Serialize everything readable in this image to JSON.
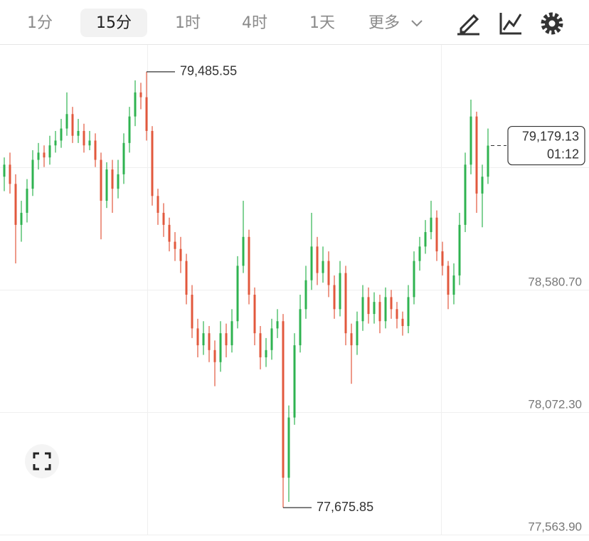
{
  "toolbar": {
    "tabs": [
      "1分",
      "15分",
      "1时",
      "4时",
      "1天"
    ],
    "selected": 1,
    "more": "更多"
  },
  "chart_data": {
    "type": "candlestick",
    "up_color": "#2fb350",
    "down_color": "#e2583d",
    "ylim": [
      77563.9,
      79597.5
    ],
    "yticks": [
      {
        "value": 77563.9,
        "label": "77,563.90"
      },
      {
        "value": 78072.3,
        "label": "78,072.30"
      },
      {
        "value": 78580.7,
        "label": "78,580.70"
      }
    ],
    "grid": true,
    "high": {
      "value": 79485.55,
      "label": "79,485.55"
    },
    "low": {
      "value": 77675.85,
      "label": "77,675.85"
    },
    "last": {
      "value": 79179.13,
      "label": "79,179.13"
    },
    "countdown": "01:12",
    "candles": [
      [
        79050,
        79130,
        78990,
        79100
      ],
      [
        79100,
        79150,
        78980,
        79020
      ],
      [
        79020,
        79060,
        78690,
        78850
      ],
      [
        78850,
        78950,
        78780,
        78900
      ],
      [
        78900,
        79040,
        78860,
        79000
      ],
      [
        79000,
        79160,
        78970,
        79120
      ],
      [
        79120,
        79190,
        79080,
        79150
      ],
      [
        79150,
        79180,
        79090,
        79130
      ],
      [
        79130,
        79220,
        79100,
        79180
      ],
      [
        79180,
        79240,
        79150,
        79200
      ],
      [
        79200,
        79290,
        79170,
        79250
      ],
      [
        79250,
        79400,
        79220,
        79310
      ],
      [
        79310,
        79340,
        79190,
        79220
      ],
      [
        79220,
        79290,
        79190,
        79240
      ],
      [
        79240,
        79270,
        79150,
        79180
      ],
      [
        79180,
        79240,
        79160,
        79200
      ],
      [
        79200,
        79230,
        79090,
        79120
      ],
      [
        79120,
        79150,
        78790,
        78950
      ],
      [
        78950,
        79110,
        78920,
        79080
      ],
      [
        79080,
        79120,
        78900,
        79000
      ],
      [
        79000,
        79120,
        78960,
        79060
      ],
      [
        79060,
        79230,
        79020,
        79190
      ],
      [
        79190,
        79340,
        79150,
        79300
      ],
      [
        79300,
        79450,
        79260,
        79400
      ],
      [
        79400,
        79440,
        79330,
        79380
      ],
      [
        79380,
        79485.55,
        79200,
        79240
      ],
      [
        79240,
        79260,
        78930,
        78970
      ],
      [
        78970,
        79000,
        78850,
        78900
      ],
      [
        78900,
        78940,
        78800,
        78850
      ],
      [
        78850,
        78880,
        78740,
        78780
      ],
      [
        78780,
        78820,
        78700,
        78750
      ],
      [
        78750,
        78800,
        78650,
        78700
      ],
      [
        78700,
        78730,
        78520,
        78560
      ],
      [
        78560,
        78600,
        78380,
        78420
      ],
      [
        78420,
        78460,
        78300,
        78350
      ],
      [
        78350,
        78450,
        78310,
        78400
      ],
      [
        78400,
        78430,
        78280,
        78330
      ],
      [
        78330,
        78370,
        78180,
        78280
      ],
      [
        78280,
        78450,
        78240,
        78400
      ],
      [
        78400,
        78440,
        78300,
        78350
      ],
      [
        78350,
        78500,
        78320,
        78450
      ],
      [
        78450,
        78720,
        78420,
        78680
      ],
      [
        78680,
        78950,
        78650,
        78800
      ],
      [
        78800,
        78830,
        78520,
        78560
      ],
      [
        78560,
        78590,
        78350,
        78400
      ],
      [
        78400,
        78430,
        78250,
        78300
      ],
      [
        78300,
        78380,
        78260,
        78330
      ],
      [
        78330,
        78460,
        78290,
        78420
      ],
      [
        78420,
        78500,
        78380,
        78450
      ],
      [
        78450,
        78480,
        77675.85,
        77800
      ],
      [
        77800,
        78100,
        77700,
        78050
      ],
      [
        78050,
        78400,
        78020,
        78350
      ],
      [
        78350,
        78560,
        78320,
        78500
      ],
      [
        78500,
        78680,
        78460,
        78620
      ],
      [
        78620,
        78900,
        78580,
        78760
      ],
      [
        78760,
        78800,
        78600,
        78650
      ],
      [
        78650,
        78760,
        78610,
        78700
      ],
      [
        78700,
        78740,
        78550,
        78600
      ],
      [
        78600,
        78640,
        78460,
        78500
      ],
      [
        78500,
        78700,
        78470,
        78650
      ],
      [
        78650,
        78680,
        78350,
        78400
      ],
      [
        78400,
        78440,
        78190,
        78350
      ],
      [
        78350,
        78490,
        78310,
        78450
      ],
      [
        78450,
        78600,
        78410,
        78550
      ],
      [
        78550,
        78590,
        78440,
        78480
      ],
      [
        78480,
        78570,
        78440,
        78530
      ],
      [
        78530,
        78560,
        78400,
        78450
      ],
      [
        78450,
        78590,
        78420,
        78550
      ],
      [
        78550,
        78580,
        78460,
        78500
      ],
      [
        78500,
        78530,
        78420,
        78460
      ],
      [
        78460,
        78490,
        78390,
        78430
      ],
      [
        78430,
        78600,
        78400,
        78550
      ],
      [
        78550,
        78740,
        78520,
        78700
      ],
      [
        78700,
        78800,
        78660,
        78760
      ],
      [
        78760,
        78870,
        78730,
        78820
      ],
      [
        78820,
        78950,
        78790,
        78880
      ],
      [
        78880,
        78910,
        78700,
        78740
      ],
      [
        78740,
        78780,
        78640,
        78680
      ],
      [
        78680,
        78700,
        78500,
        78560
      ],
      [
        78560,
        78690,
        78520,
        78640
      ],
      [
        78640,
        78900,
        78600,
        78850
      ],
      [
        78850,
        79150,
        78820,
        79100
      ],
      [
        79100,
        79370,
        79060,
        79300
      ],
      [
        79300,
        79320,
        78900,
        78980
      ],
      [
        78980,
        79100,
        78840,
        79050
      ],
      [
        79050,
        79250,
        79020,
        79179.13
      ]
    ]
  }
}
